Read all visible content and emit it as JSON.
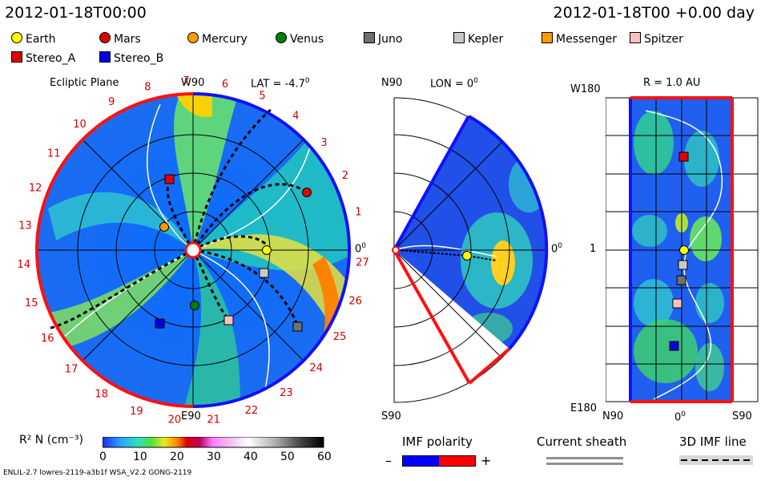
{
  "header": {
    "datetime_left": "2012-01-18T00:00",
    "datetime_right": "2012-01-18T00 +0.00 day"
  },
  "legend": [
    {
      "name": "Earth",
      "shape": "circle",
      "color": "#ffff00"
    },
    {
      "name": "Mars",
      "shape": "circle",
      "color": "#e00000"
    },
    {
      "name": "Mercury",
      "shape": "circle",
      "color": "#ff9900"
    },
    {
      "name": "Venus",
      "shape": "circle",
      "color": "#008000"
    },
    {
      "name": "Juno",
      "shape": "square",
      "color": "#707070"
    },
    {
      "name": "Kepler",
      "shape": "square",
      "color": "#c8c8c8"
    },
    {
      "name": "Messenger",
      "shape": "square",
      "color": "#ff9900"
    },
    {
      "name": "Spitzer",
      "shape": "square",
      "color": "#ffc0c0"
    },
    {
      "name": "Stereo_A",
      "shape": "square",
      "color": "#e00000"
    },
    {
      "name": "Stereo_B",
      "shape": "square",
      "color": "#0000e0"
    }
  ],
  "ecliptic": {
    "title": "Ecliptic Plane",
    "top_label": "W90",
    "lat_label": "LAT = -4.7",
    "deg": "0",
    "bottom_label": "E90",
    "right_label": "0",
    "rotation_numbers": [
      "1",
      "2",
      "3",
      "4",
      "5",
      "6",
      "7",
      "8",
      "9",
      "10",
      "11",
      "12",
      "13",
      "14",
      "15",
      "16",
      "17",
      "18",
      "19",
      "20",
      "21",
      "22",
      "23",
      "24",
      "25",
      "26",
      "27"
    ]
  },
  "meridional": {
    "top_label": "N90",
    "lon_label": "LON = 0",
    "deg": "0",
    "bottom_label": "S90",
    "right_label": "0"
  },
  "radial": {
    "r_label": "R = 1.0 AU",
    "top_left": "W180",
    "mid_left": "1",
    "bottom_left": "E180",
    "bottom_n": "N90",
    "bottom_mid": "0",
    "bottom_s": "S90"
  },
  "colorbar": {
    "label": "R² N (cm⁻³)",
    "ticks": [
      "0",
      "10",
      "20",
      "30",
      "40",
      "50",
      "60"
    ]
  },
  "imf": {
    "title": "IMF polarity",
    "minus": "–",
    "plus": "+",
    "neg_color": "#0000ff",
    "pos_color": "#ff0000"
  },
  "sheath": {
    "title": "Current sheath"
  },
  "imf3d": {
    "title": "3D IMF line"
  },
  "footer": {
    "text": "ENLIL-2.7 lowres-2119-a3b1f WSA_V2.2 GONG-2119"
  }
}
